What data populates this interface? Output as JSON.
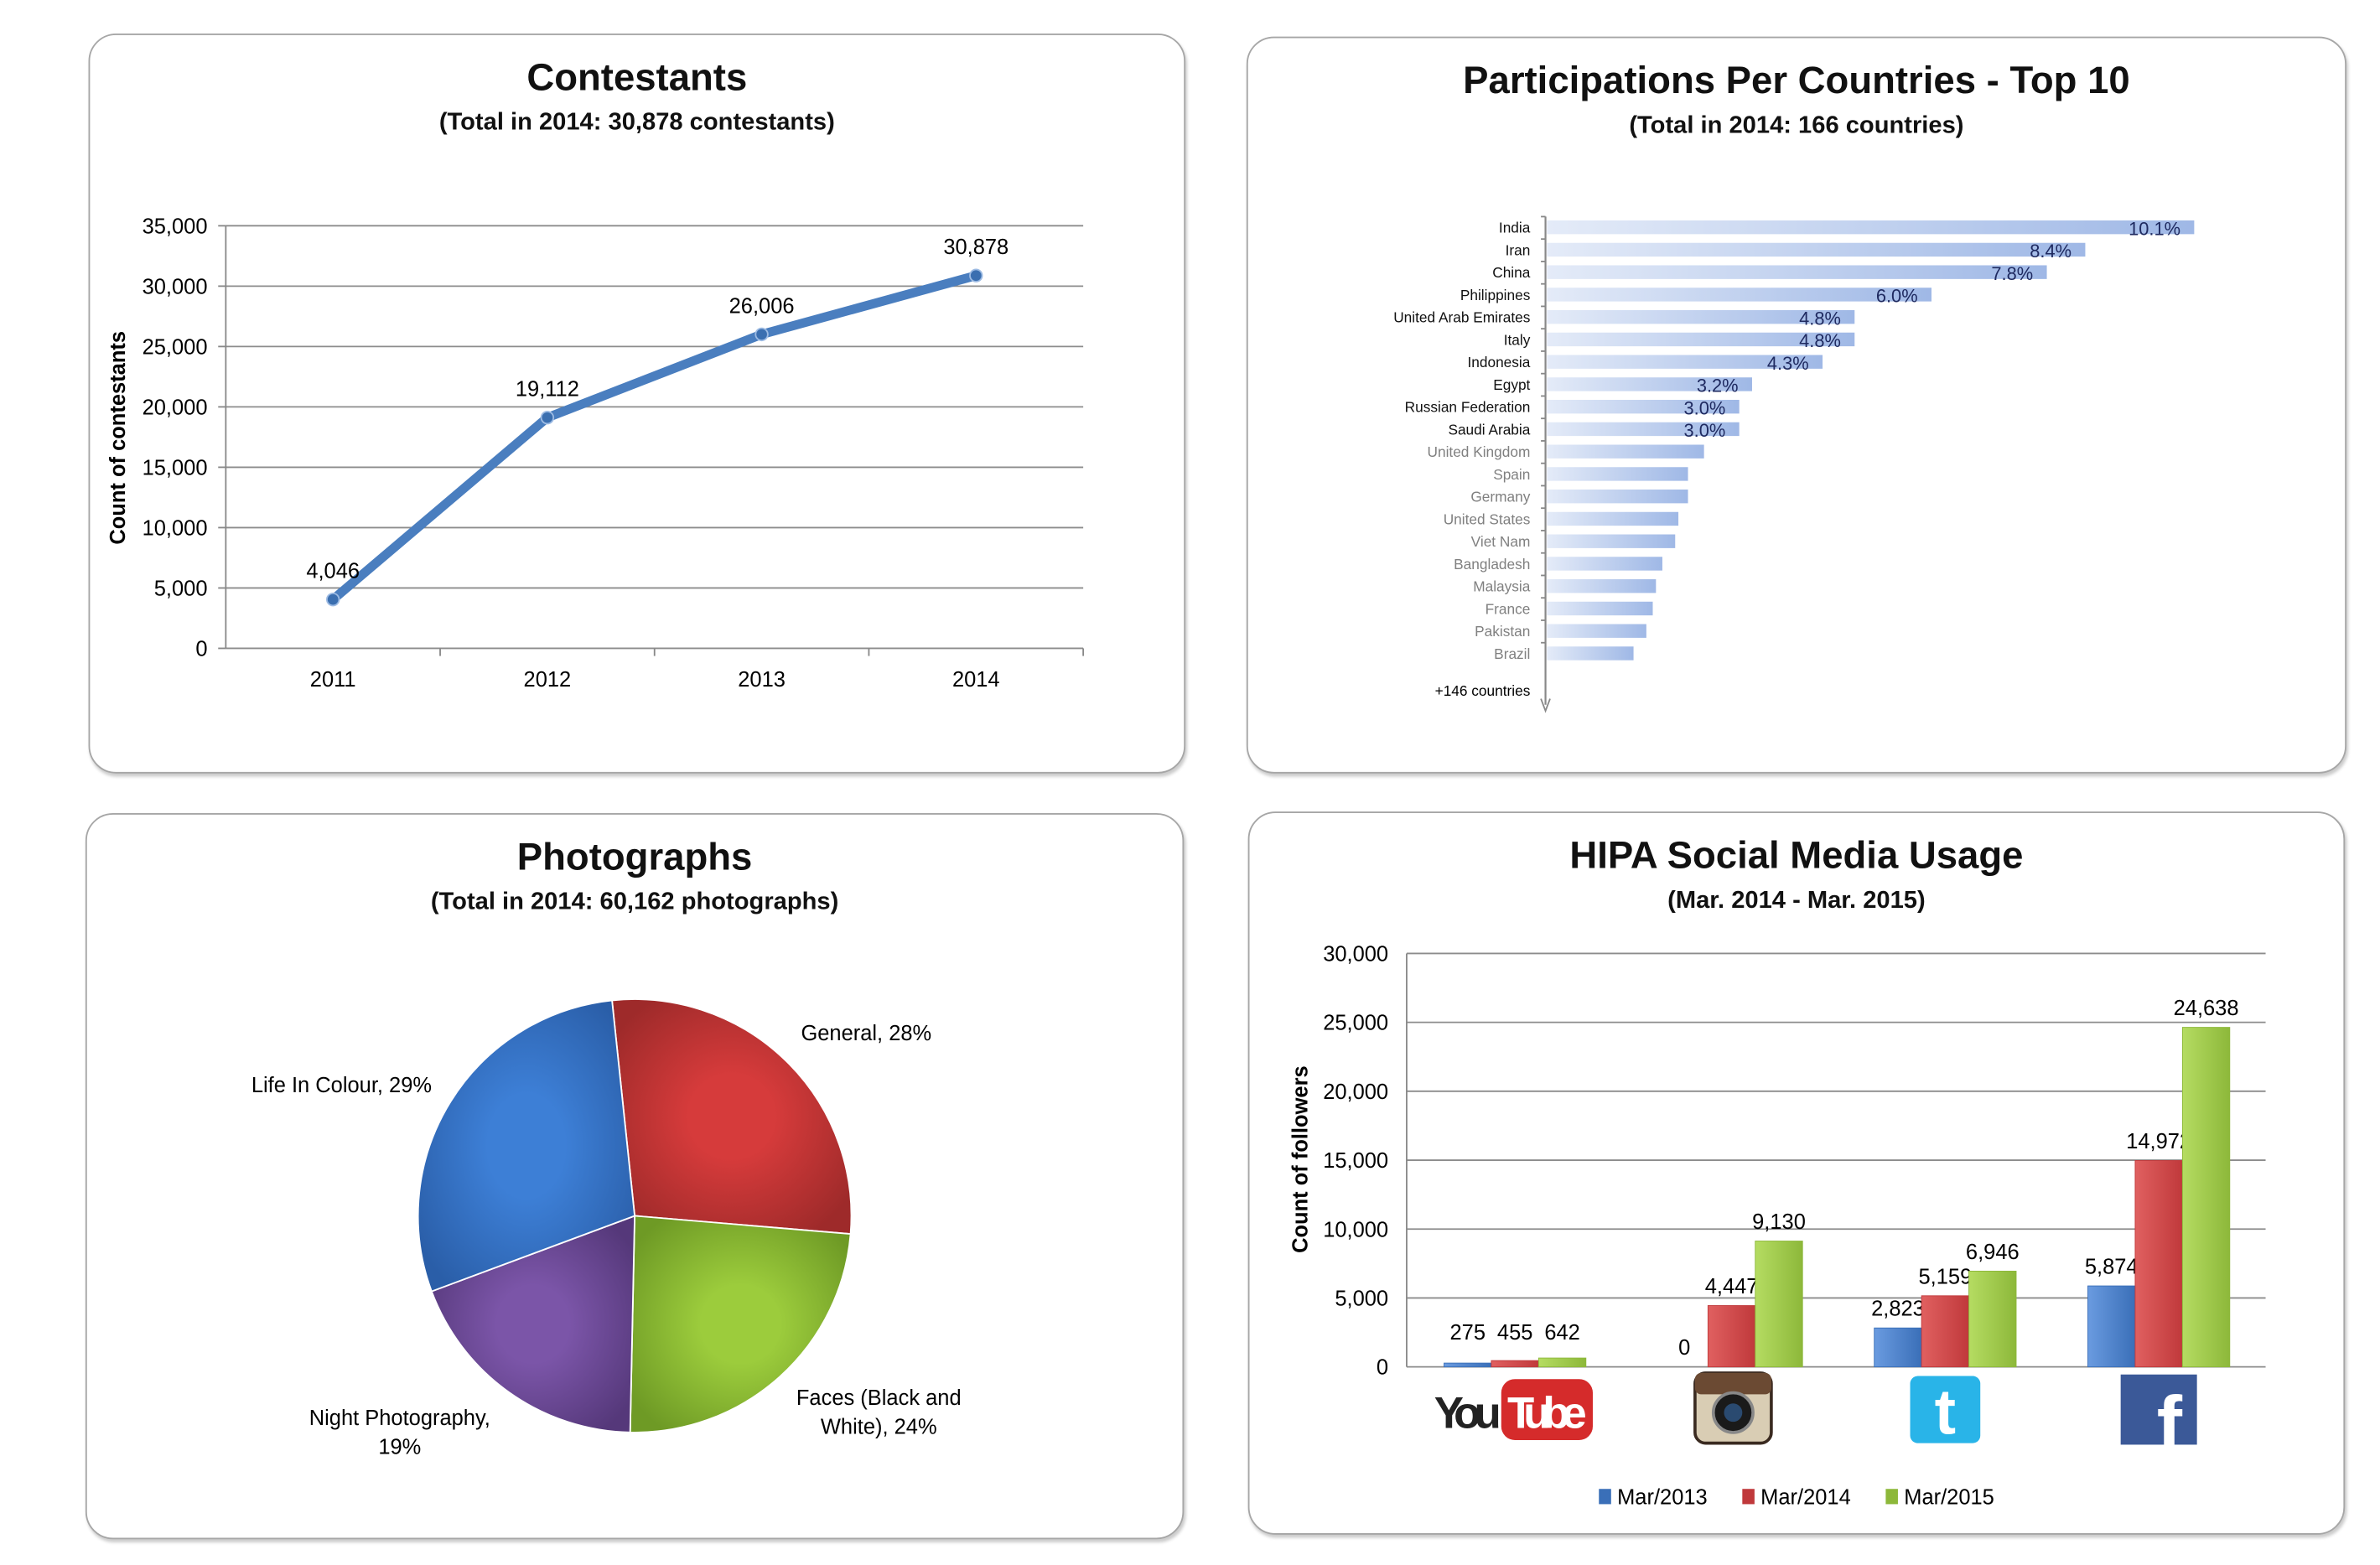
{
  "colors": {
    "line": "#4a7ebf",
    "bar2013": "#3a6fb8",
    "bar2014": "#c0393b",
    "bar2015": "#8db83a",
    "country_bar": "#9fb8e6",
    "pie_general": "#d63b3b",
    "pie_faces": "#9ccc3c",
    "pie_night": "#7b55a8",
    "pie_life": "#3d7fd6"
  },
  "chart_data": [
    {
      "type": "line",
      "title": "Contestants",
      "subtitle": "(Total in 2014: 30,878 contestants)",
      "xlabel": "",
      "ylabel": "Count of contestants",
      "categories": [
        "2011",
        "2012",
        "2013",
        "2014"
      ],
      "values": [
        4046,
        19112,
        26006,
        30878
      ],
      "data_labels": [
        "4,046",
        "19,112",
        "26,006",
        "30,878"
      ],
      "ylim": [
        0,
        35000
      ],
      "yticks": [
        "0",
        "5,000",
        "10,000",
        "15,000",
        "20,000",
        "25,000",
        "30,000",
        "35,000"
      ],
      "grid": true
    },
    {
      "type": "bar",
      "orientation": "horizontal",
      "title": "Participations Per Countries - Top 10",
      "subtitle": "(Total in 2014: 166 countries)",
      "categories": [
        "India",
        "Iran",
        "China",
        "Philippines",
        "United Arab Emirates",
        "Italy",
        "Indonesia",
        "Egypt",
        "Russian Federation",
        "Saudi Arabia",
        "United Kingdom",
        "Spain",
        "Germany",
        "United States",
        "Viet Nam",
        "Bangladesh",
        "Malaysia",
        "France",
        "Pakistan",
        "Brazil"
      ],
      "values": [
        10.1,
        8.4,
        7.8,
        6.0,
        4.8,
        4.8,
        4.3,
        3.2,
        3.0,
        3.0,
        2.45,
        2.2,
        2.2,
        2.05,
        2.0,
        1.8,
        1.7,
        1.65,
        1.55,
        1.35
      ],
      "data_labels": [
        "10.1%",
        "8.4%",
        "7.8%",
        "6.0%",
        "4.8%",
        "4.8%",
        "4.3%",
        "3.2%",
        "3.0%",
        "3.0%",
        "",
        "",
        "",
        "",
        "",
        "",
        "",
        "",
        "",
        ""
      ],
      "top_count": 10,
      "footer_label": "+146 countries"
    },
    {
      "type": "pie",
      "title": "Photographs",
      "subtitle": "(Total in 2014: 60,162 photographs)",
      "categories": [
        "General",
        "Faces (Black and White)",
        "Night Photography",
        "Life In Colour"
      ],
      "values": [
        28,
        24,
        19,
        29
      ],
      "data_labels": [
        "General, 28%",
        "Faces (Black and White), 24%",
        "Night Photography, 19%",
        "Life In Colour, 29%"
      ]
    },
    {
      "type": "bar",
      "title": "HIPA Social Media Usage",
      "subtitle": "(Mar. 2014 - Mar. 2015)",
      "ylabel": "Count of followers",
      "categories": [
        "YouTube",
        "Instagram",
        "Twitter",
        "Facebook"
      ],
      "series": [
        {
          "name": "Mar/2013",
          "values": [
            275,
            0,
            2823,
            5874
          ],
          "labels": [
            "275",
            "0",
            "2,823",
            "5,874"
          ]
        },
        {
          "name": "Mar/2014",
          "values": [
            455,
            4447,
            5159,
            14972
          ],
          "labels": [
            "455",
            "4,447",
            "5,159",
            "14,972"
          ]
        },
        {
          "name": "Mar/2015",
          "values": [
            642,
            9130,
            6946,
            24638
          ],
          "labels": [
            "642",
            "9,130",
            "6,946",
            "24,638"
          ]
        }
      ],
      "ylim": [
        0,
        30000
      ],
      "yticks": [
        "0",
        "5,000",
        "10,000",
        "15,000",
        "20,000",
        "25,000",
        "30,000"
      ],
      "grid": true,
      "legend": "bottom",
      "category_icons": [
        "youtube-logo-icon",
        "instagram-logo-icon",
        "twitter-logo-icon",
        "facebook-logo-icon"
      ],
      "youtube_logo": {
        "you": "You",
        "tube": "Tube"
      }
    }
  ]
}
